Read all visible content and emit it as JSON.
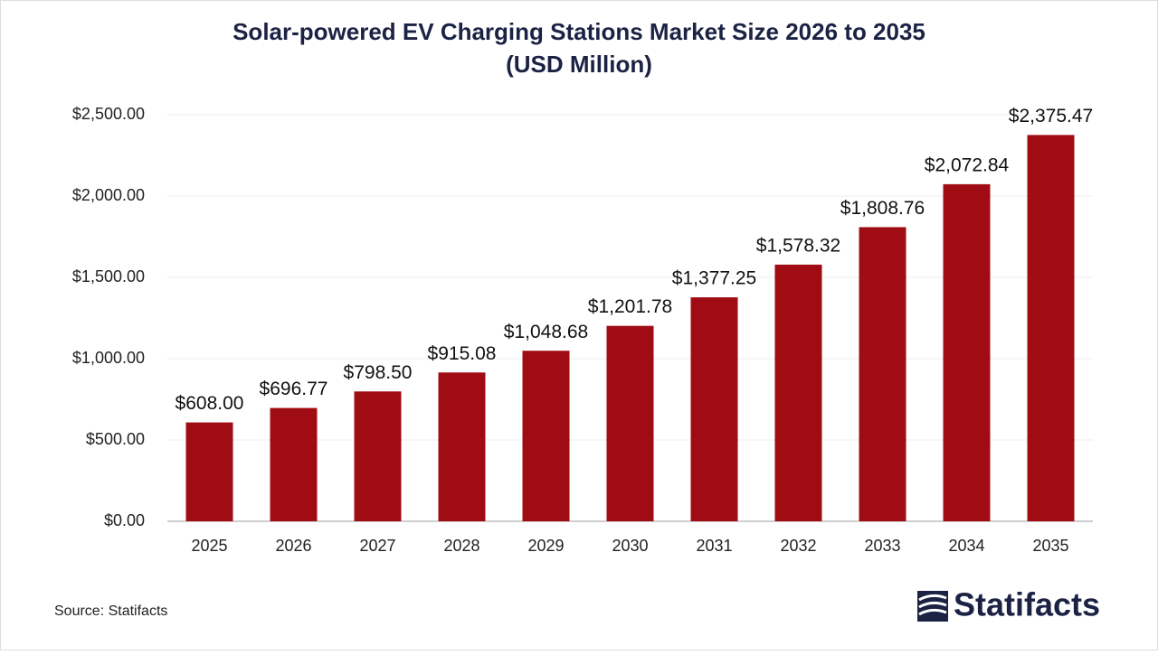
{
  "chart_data": {
    "type": "bar",
    "title": "Solar-powered EV Charging Stations Market Size 2026 to 2035",
    "subtitle": "(USD Million)",
    "categories": [
      "2025",
      "2026",
      "2027",
      "2028",
      "2029",
      "2030",
      "2031",
      "2032",
      "2033",
      "2034",
      "2035"
    ],
    "values": [
      608.0,
      696.77,
      798.5,
      915.08,
      1048.68,
      1201.78,
      1377.25,
      1578.32,
      1808.76,
      2072.84,
      2375.47
    ],
    "value_labels": [
      "$608.00",
      "$696.77",
      "$798.50",
      "$915.08",
      "$1,048.68",
      "$1,201.78",
      "$1,377.25",
      "$1,578.32",
      "$1,808.76",
      "$2,072.84",
      "$2,375.47"
    ],
    "color": "#a00c13",
    "ylim": [
      0,
      2500
    ],
    "yticks": [
      {
        "value": 0,
        "label": "$0.00"
      },
      {
        "value": 500,
        "label": "$500.00"
      },
      {
        "value": 1000,
        "label": "$1,000.00"
      },
      {
        "value": 1500,
        "label": "$1,500.00"
      },
      {
        "value": 2000,
        "label": "$2,000.00"
      },
      {
        "value": 2500,
        "label": "$2,500.00"
      }
    ],
    "grid": true,
    "source": "Source: Statifacts",
    "logo": "Statifacts"
  }
}
